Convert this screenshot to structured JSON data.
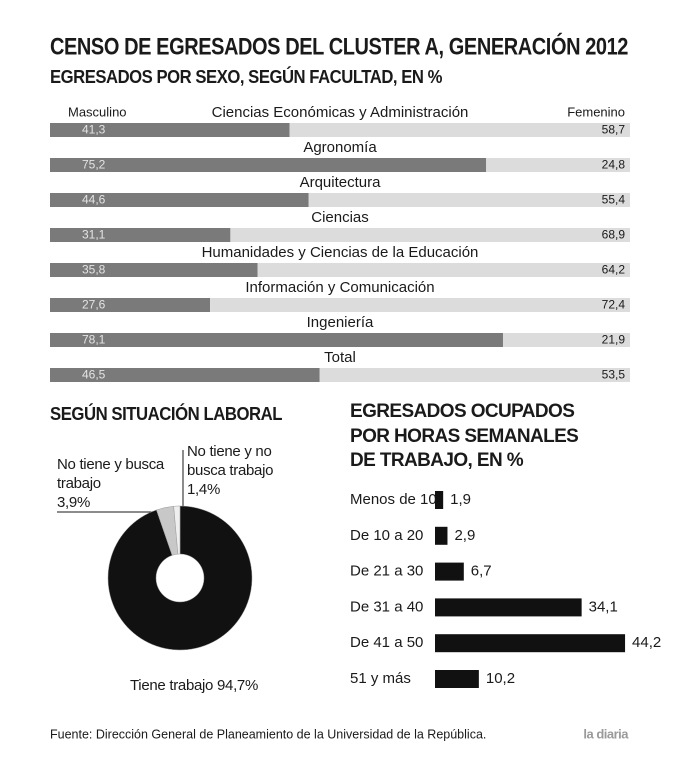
{
  "title": "CENSO DE EGRESADOS DEL CLUSTER A, GENERACIÓN 2012",
  "source": "Fuente: Dirección General de Planeamiento de la Universidad de la República.",
  "brand": "la diaria",
  "chart_data": [
    {
      "type": "bar",
      "orientation": "horizontal",
      "stacked": true,
      "title": "EGRESADOS POR SEXO, SEGÚN FACULTAD, EN %",
      "categories": [
        "Ciencias Económicas y Administración",
        "Agronomía",
        "Arquitectura",
        "Ciencias",
        "Humanidades y Ciencias de la Educación",
        "Información y Comunicación",
        "Ingeniería",
        "Total"
      ],
      "series": [
        {
          "name": "Masculino",
          "color": "#7a7a7a",
          "values": [
            41.3,
            75.2,
            44.6,
            31.1,
            35.8,
            27.6,
            78.1,
            46.5
          ],
          "value_labels": [
            "41,3",
            "75,2",
            "44,6",
            "31,1",
            "35,8",
            "27,6",
            "78,1",
            "46,5"
          ]
        },
        {
          "name": "Femenino",
          "color": "#dcdcdc",
          "values": [
            58.7,
            24.8,
            55.4,
            68.9,
            64.2,
            72.4,
            21.9,
            53.5
          ],
          "value_labels": [
            "58,7",
            "24,8",
            "55,4",
            "68,9",
            "64,2",
            "72,4",
            "21,9",
            "53,5"
          ]
        }
      ],
      "xlim": [
        0,
        100
      ]
    },
    {
      "type": "pie",
      "donut": true,
      "title": "SEGÚN SITUACIÓN LABORAL",
      "categories": [
        "Tiene trabajo",
        "No tiene y busca trabajo",
        "No tiene y no busca trabajo"
      ],
      "values": [
        94.7,
        3.9,
        1.4
      ],
      "value_labels": [
        "94,7%",
        "3,9%",
        "1,4%"
      ],
      "colors": [
        "#111111",
        "#c8c8c8",
        "#efefef"
      ]
    },
    {
      "type": "bar",
      "orientation": "horizontal",
      "title": "EGRESADOS OCUPADOS POR HORAS SEMANALES DE TRABAJO, EN %",
      "categories": [
        "Menos de 10",
        "De 10 a 20",
        "De 21 a 30",
        "De 31 a 40",
        "De 41 a 50",
        "51 y más"
      ],
      "values": [
        1.9,
        2.9,
        6.7,
        34.1,
        44.2,
        10.2
      ],
      "value_labels": [
        "1,9",
        "2,9",
        "6,7",
        "34,1",
        "44,2",
        "10,2"
      ],
      "color": "#111111",
      "xlim": [
        0,
        45
      ]
    }
  ]
}
